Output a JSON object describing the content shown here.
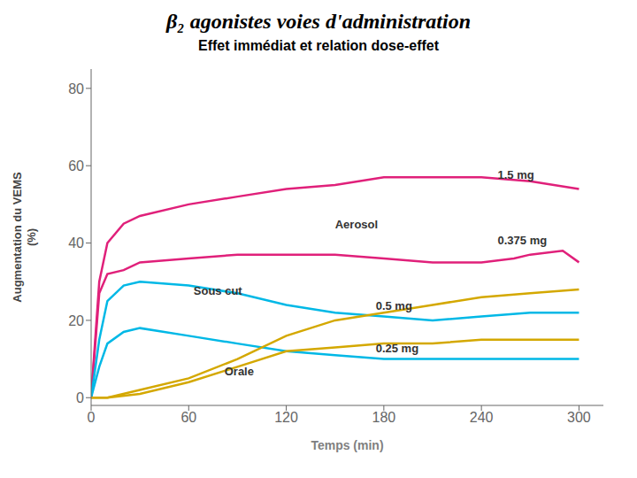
{
  "chart_data": {
    "type": "line",
    "title": "β₂ agonistes voies d'administration",
    "subtitle": "Effet immédiat et relation dose-effet",
    "x_label": "Temps (min)",
    "y_label": "Augmentation du VEMS\n(%)",
    "xlim": [
      0,
      315
    ],
    "xticks": [
      0,
      60,
      120,
      180,
      240,
      300
    ],
    "ylim": [
      -2,
      85
    ],
    "yticks": [
      0,
      20,
      40,
      60,
      80
    ],
    "grid": false,
    "series": [
      {
        "color": "#e0207a",
        "x": [
          0,
          5,
          10,
          20,
          30,
          60,
          90,
          120,
          150,
          180,
          210,
          240,
          270,
          300
        ],
        "values": [
          0,
          30,
          40,
          45,
          47,
          50,
          52,
          54,
          55,
          57,
          57,
          57,
          56,
          54
        ]
      },
      {
        "color": "#e0207a",
        "x": [
          0,
          5,
          10,
          20,
          30,
          60,
          90,
          120,
          150,
          180,
          210,
          240,
          260,
          270,
          290,
          300
        ],
        "values": [
          0,
          27,
          32,
          33,
          35,
          36,
          37,
          37,
          37,
          36,
          35,
          35,
          36,
          37,
          38,
          35
        ]
      },
      {
        "color": "#00b8e6",
        "x": [
          0,
          5,
          10,
          20,
          30,
          60,
          90,
          120,
          150,
          180,
          210,
          240,
          270,
          300
        ],
        "values": [
          0,
          15,
          25,
          29,
          30,
          29,
          27,
          24,
          22,
          21,
          20,
          21,
          22,
          22
        ]
      },
      {
        "color": "#00b8e6",
        "x": [
          0,
          5,
          10,
          20,
          30,
          60,
          90,
          120,
          150,
          180,
          210,
          240,
          270,
          300
        ],
        "values": [
          0,
          8,
          14,
          17,
          18,
          16,
          14,
          12,
          11,
          10,
          10,
          10,
          10,
          10
        ]
      },
      {
        "color": "#d4a800",
        "x": [
          0,
          10,
          30,
          60,
          90,
          120,
          150,
          180,
          210,
          240,
          270,
          300
        ],
        "values": [
          0,
          0,
          2,
          5,
          10,
          16,
          20,
          22,
          24,
          26,
          27,
          28
        ]
      },
      {
        "color": "#d4a800",
        "x": [
          0,
          10,
          30,
          60,
          90,
          120,
          150,
          180,
          210,
          240,
          270,
          300
        ],
        "values": [
          0,
          0,
          1,
          4,
          8,
          12,
          13,
          14,
          14,
          15,
          15,
          15
        ]
      }
    ],
    "annotations": [
      {
        "text": "Aerosol",
        "x": 150,
        "y": 43
      },
      {
        "text": "1.5 mg",
        "x": 250,
        "y": 56
      },
      {
        "text": "0.375 mg",
        "x": 250,
        "y": 39
      },
      {
        "text": "Sous cut",
        "x": 63,
        "y": 26
      },
      {
        "text": "0.5 mg",
        "x": 175,
        "y": 22
      },
      {
        "text": "0.25 mg",
        "x": 175,
        "y": 11
      },
      {
        "text": "Orale",
        "x": 82,
        "y": 5
      }
    ]
  }
}
